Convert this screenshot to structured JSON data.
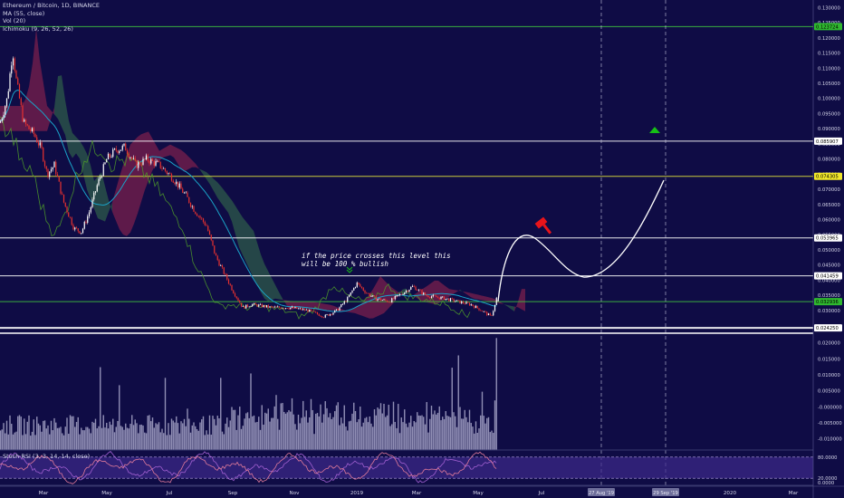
{
  "legend": {
    "title": "Ethereum / Bitcoin, 1D, BINANCE",
    "ma": "MA (55, close)",
    "vol": "Vol (20)",
    "ichimoku": "Ichimoku (9, 26, 52, 26)"
  },
  "stoch_label": "Stoch RSI (3, 3, 14, 14, close)",
  "annotation": {
    "line1": "if the price crosses this level this",
    "line2": "will be 100 % bullish"
  },
  "colors": {
    "background": "#0f0c45",
    "bull": "#ffffff",
    "bear": "#e8312f",
    "ma": "#1aa3c8",
    "cloud_bear": "#7a1f4c",
    "cloud_bull": "#2e5a4a",
    "lagging": "#4e9a2a",
    "green_line": "#3fbf3f",
    "yellow_line": "#e0e03a",
    "white_line": "#ffffff",
    "volume": "#a8a7c9",
    "stoch_band": "#3d2a8c",
    "stoch_line": "#a05fd0",
    "up_arrow": "#16c016",
    "red_icon": "#e8141a"
  },
  "chart_data": {
    "type": "candlestick",
    "pair": "ETH/BTC",
    "interval": "1D",
    "price_axis": {
      "ticks": [
        "0.130000",
        "0.125000",
        "0.120000",
        "0.115000",
        "0.110000",
        "0.105000",
        "0.100000",
        "0.095000",
        "0.090000",
        "0.085000",
        "0.080000",
        "0.075000",
        "0.070000",
        "0.065000",
        "0.060000",
        "0.055000",
        "0.050000",
        "0.045000",
        "0.040000",
        "0.035000",
        "0.030000"
      ],
      "range": [
        0.0225,
        0.1325
      ]
    },
    "horizontal_levels": [
      {
        "label": "0.123724",
        "value": 0.123724,
        "color": "green"
      },
      {
        "label": "0.085907",
        "value": 0.085907,
        "color": "white"
      },
      {
        "label": "0.074305",
        "value": 0.074305,
        "color": "yellow"
      },
      {
        "label": "0.053965",
        "value": 0.053965,
        "color": "white"
      },
      {
        "label": "0.041459",
        "value": 0.041459,
        "color": "white"
      },
      {
        "label": "0.032936",
        "value": 0.032936,
        "color": "green"
      },
      {
        "label": "0.024250",
        "value": 0.02425,
        "color": "white"
      }
    ],
    "price_path_approx": [
      {
        "x": "Feb",
        "y": 0.092
      },
      {
        "x": "Mar (early)",
        "y": 0.116
      },
      {
        "x": "Mar",
        "y": 0.078
      },
      {
        "x": "Apr",
        "y": 0.056
      },
      {
        "x": "May",
        "y": 0.083
      },
      {
        "x": "Jun",
        "y": 0.079
      },
      {
        "x": "Jul",
        "y": 0.077
      },
      {
        "x": "Aug",
        "y": 0.05
      },
      {
        "x": "Sep",
        "y": 0.032
      },
      {
        "x": "Oct",
        "y": 0.032
      },
      {
        "x": "Nov",
        "y": 0.029
      },
      {
        "x": "Dec",
        "y": 0.033
      },
      {
        "x": "2019",
        "y": 0.039
      },
      {
        "x": "Feb",
        "y": 0.034
      },
      {
        "x": "Mar",
        "y": 0.036
      },
      {
        "x": "Apr",
        "y": 0.032
      },
      {
        "x": "May",
        "y": 0.034
      }
    ],
    "projection_path_approx": [
      {
        "x": "May",
        "y": 0.033
      },
      {
        "x": "Jun",
        "y": 0.056
      },
      {
        "x": "Jul",
        "y": 0.046
      },
      {
        "x": "Aug",
        "y": 0.042
      },
      {
        "x": "Sep",
        "y": 0.073
      }
    ],
    "volume_axis": {
      "ticks": [
        "0.020000",
        "0.015000",
        "0.010000",
        "0.005000",
        "-0.000000",
        "-0.005000",
        "-0.010000"
      ],
      "range": [
        -0.0135,
        0.023
      ]
    },
    "stoch_axis": {
      "ticks": [
        "80.0000",
        "20.0000",
        "0.0000"
      ],
      "range": [
        0,
        100
      ],
      "bands": [
        20,
        80
      ]
    },
    "time_axis": {
      "ticks": [
        "Mar",
        "May",
        "Jul",
        "Sep",
        "Nov",
        "2019",
        "Mar",
        "May",
        "Jul",
        "2020",
        "Mar"
      ],
      "highlighted_labels": [
        "27 Aug '19",
        "29 Sep '19"
      ]
    },
    "vertical_markers": [
      "27 Aug '19",
      "29 Sep '19"
    ]
  }
}
